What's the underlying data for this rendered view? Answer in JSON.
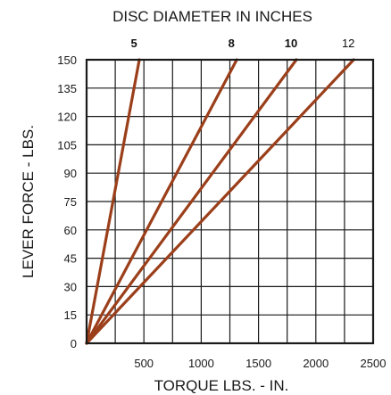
{
  "chart_data": {
    "type": "line",
    "title": "DISC DIAMETER IN INCHES",
    "xlabel": "TORQUE LBS. - IN.",
    "ylabel": "LEVER FORCE - LBS.",
    "xlim": [
      0,
      2500
    ],
    "ylim": [
      0,
      150
    ],
    "x_ticks": [
      "500",
      "1000",
      "1500",
      "2000",
      "2500"
    ],
    "x_tick_values": [
      500,
      1000,
      1500,
      2000,
      2500
    ],
    "y_ticks": [
      "0",
      "15",
      "30",
      "45",
      "60",
      "75",
      "90",
      "105",
      "120",
      "135",
      "150"
    ],
    "y_tick_values": [
      0,
      15,
      30,
      45,
      60,
      75,
      90,
      105,
      120,
      135,
      150
    ],
    "grid": true,
    "line_color": "#9b3f1b",
    "series": [
      {
        "name": "5",
        "bold": true,
        "x": [
          0,
          460
        ],
        "y": [
          0,
          150
        ]
      },
      {
        "name": "8",
        "bold": true,
        "x": [
          0,
          1310
        ],
        "y": [
          0,
          150
        ]
      },
      {
        "name": "10",
        "bold": true,
        "x": [
          0,
          1830
        ],
        "y": [
          0,
          150
        ]
      },
      {
        "name": "12",
        "bold": false,
        "x": [
          0,
          2330
        ],
        "y": [
          0,
          150
        ]
      }
    ]
  }
}
